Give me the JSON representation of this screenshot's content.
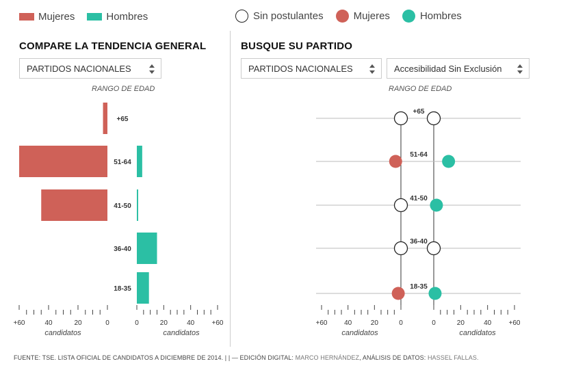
{
  "colors": {
    "mujeres": "#cf6158",
    "hombres": "#2bbfa4",
    "axis": "#444444",
    "grid": "#bbbbbb"
  },
  "legend_left": [
    {
      "label": "Mujeres",
      "color": "#cf6158"
    },
    {
      "label": "Hombres",
      "color": "#2bbfa4"
    }
  ],
  "legend_right": [
    {
      "label": "Sin postulantes",
      "color": "#ffffff"
    },
    {
      "label": "Mujeres",
      "color": "#cf6158"
    },
    {
      "label": "Hombres",
      "color": "#2bbfa4"
    }
  ],
  "left_panel": {
    "title": "COMPARE LA TENDENCIA GENERAL",
    "select_value": "PARTIDOS NACIONALES",
    "rango_label": "RANGO DE EDAD"
  },
  "right_panel": {
    "title": "BUSQUE SU PARTIDO",
    "select_value": "PARTIDOS NACIONALES",
    "party_select_value": "Accesibilidad Sin Exclusión",
    "rango_label": "RANGO DE EDAD"
  },
  "chart_data": [
    {
      "type": "bar",
      "orientation": "horizontal-pyramid",
      "title": "COMPARE LA TENDENCIA GENERAL",
      "categories": [
        "+65",
        "51-64",
        "41-50",
        "36-40",
        "18-35"
      ],
      "series": [
        {
          "name": "Mujeres",
          "values": [
            3,
            60,
            45,
            0,
            0
          ]
        },
        {
          "name": "Hombres",
          "values": [
            0,
            4,
            1,
            15,
            9
          ]
        }
      ],
      "xlim": [
        0,
        60
      ],
      "ticks_left": [
        "+60",
        "40",
        "20",
        "0"
      ],
      "ticks_right": [
        "0",
        "20",
        "40",
        "+60"
      ],
      "xlabel_left": "candidatos",
      "xlabel_right": "candidatos",
      "ylabel": "RANGO DE EDAD"
    },
    {
      "type": "scatter",
      "orientation": "horizontal-dot-pyramid",
      "title": "BUSQUE SU PARTIDO",
      "categories": [
        "+65",
        "51-64",
        "41-50",
        "36-40",
        "18-35"
      ],
      "series": [
        {
          "name": "Mujeres",
          "values": [
            0,
            4,
            0,
            0,
            2
          ],
          "empty_means": "Sin postulantes"
        },
        {
          "name": "Hombres",
          "values": [
            0,
            11,
            2,
            0,
            1
          ],
          "empty_means": "Sin postulantes"
        }
      ],
      "xlim": [
        0,
        60
      ],
      "ticks_left": [
        "+60",
        "40",
        "20",
        "0"
      ],
      "ticks_right": [
        "0",
        "20",
        "40",
        "+60"
      ],
      "xlabel_left": "candidatos",
      "xlabel_right": "candidatos",
      "ylabel": "RANGO DE EDAD"
    }
  ],
  "footer": {
    "fuente": "FUENTE: TSE. LISTA OFICIAL DE CANDIDATOS A DICIEMBRE DE 2014. | | — EDICIÓN DIGITAL:",
    "editor": "MARCO HERNÁNDEZ",
    "analisis_label": ", ANÁLISIS DE DATOS:",
    "analista": "HASSEL FALLAS."
  }
}
